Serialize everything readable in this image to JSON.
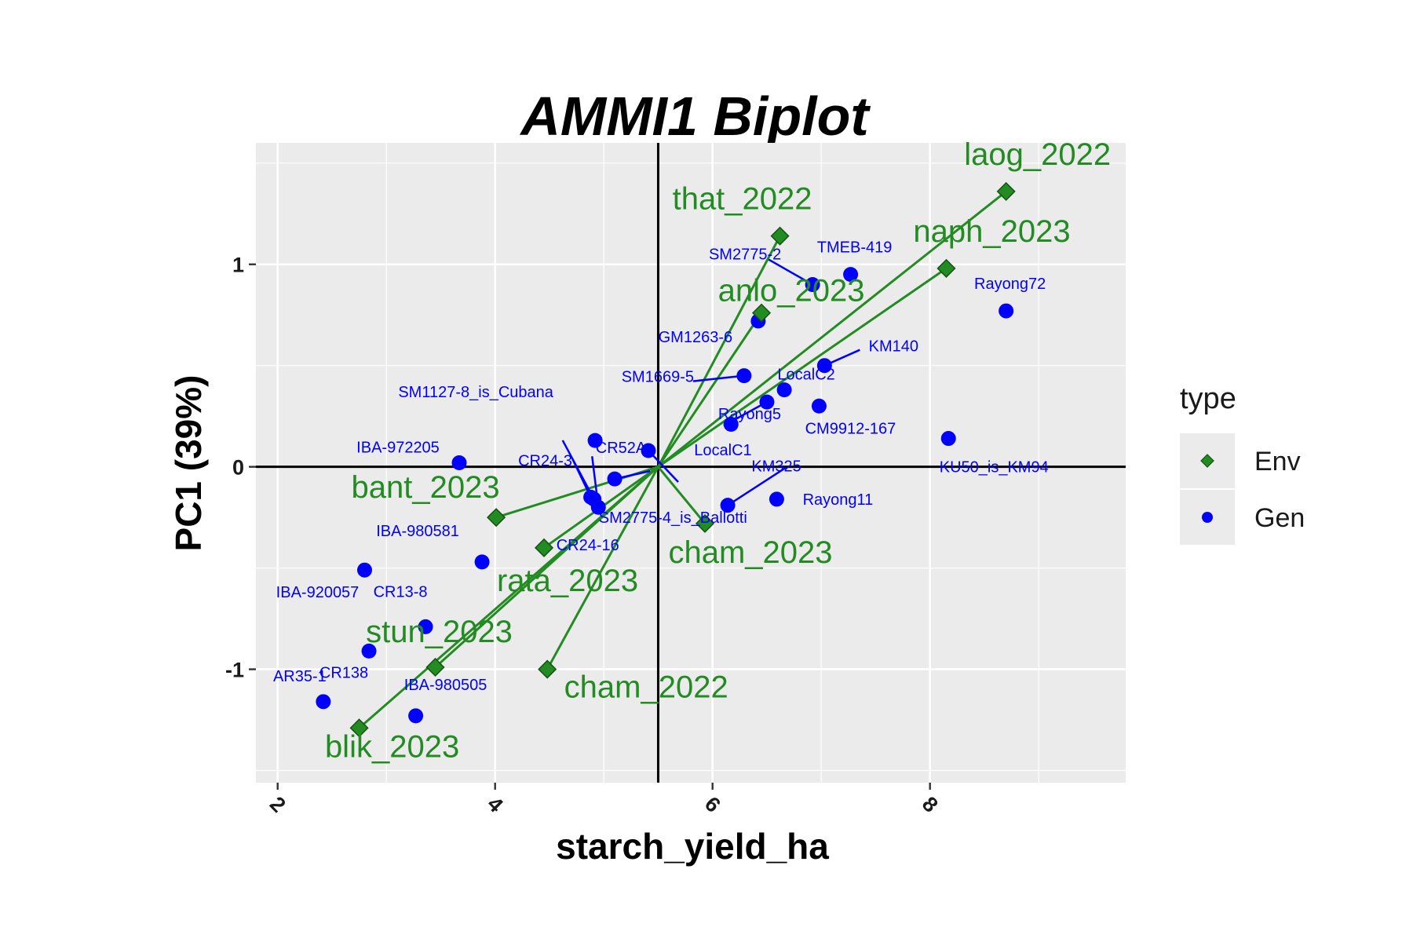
{
  "chart_data": {
    "type": "scatter",
    "title": "AMMI1 Biplot",
    "xlabel": "starch_yield_ha",
    "ylabel": "PC1 (39%)",
    "xlim": [
      1.8,
      9.8
    ],
    "ylim": [
      -1.56,
      1.6
    ],
    "x_ticks": [
      2,
      4,
      6,
      8
    ],
    "x_tick_labels": [
      "2",
      "4",
      "6",
      "8"
    ],
    "y_ticks": [
      -1,
      0,
      1
    ],
    "y_tick_labels": [
      "-1",
      "0",
      "1"
    ],
    "grid": true,
    "origin": [
      5.5,
      0
    ],
    "legend": {
      "title": "type",
      "position": "right",
      "entries": [
        {
          "label": "Env",
          "shape": "diamond",
          "color": "#228B22"
        },
        {
          "label": "Gen",
          "shape": "circle",
          "color": "#0000FF"
        }
      ]
    },
    "colors": {
      "env": "#228B22",
      "gen": "#0000FF",
      "panel": "#EBEBEB",
      "grid": "#FFFFFF"
    },
    "series": [
      {
        "name": "Env",
        "points": [
          {
            "label": "laog_2022",
            "x": 8.7,
            "y": 1.36
          },
          {
            "label": "naph_2023",
            "x": 8.15,
            "y": 0.98
          },
          {
            "label": "that_2022",
            "x": 6.62,
            "y": 1.14
          },
          {
            "label": "anlo_2023",
            "x": 6.45,
            "y": 0.76
          },
          {
            "label": "cham_2023",
            "x": 5.93,
            "y": -0.28
          },
          {
            "label": "bant_2023",
            "x": 4.01,
            "y": -0.25
          },
          {
            "label": "rata_2023",
            "x": 4.45,
            "y": -0.4
          },
          {
            "label": "stun_2023",
            "x": 3.45,
            "y": -0.99
          },
          {
            "label": "cham_2022",
            "x": 4.48,
            "y": -1.0
          },
          {
            "label": "blik_2023",
            "x": 2.75,
            "y": -1.29
          }
        ]
      },
      {
        "name": "Gen",
        "points": [
          {
            "label": "TMEB-419",
            "x": 7.27,
            "y": 0.95
          },
          {
            "label": "SM2775-2",
            "x": 6.92,
            "y": 0.9
          },
          {
            "label": "Rayong72",
            "x": 8.7,
            "y": 0.77
          },
          {
            "label": "GM1263-6",
            "x": 6.42,
            "y": 0.72
          },
          {
            "label": "KM140",
            "x": 7.03,
            "y": 0.5
          },
          {
            "label": "SM1669-5",
            "x": 6.29,
            "y": 0.45
          },
          {
            "label": "LocalC2",
            "x": 6.66,
            "y": 0.38
          },
          {
            "label": "Rayong5",
            "x": 6.5,
            "y": 0.32
          },
          {
            "label": "CM9912-167",
            "x": 6.98,
            "y": 0.3
          },
          {
            "label": "",
            "x": 6.17,
            "y": 0.21
          },
          {
            "label": "KU50_is_KM94",
            "x": 8.17,
            "y": 0.14
          },
          {
            "label": "SM1127-8_is_Cubana",
            "x": 4.92,
            "y": 0.13
          },
          {
            "label": "LocalC1",
            "x": 5.41,
            "y": 0.08
          },
          {
            "label": "IBA-972205",
            "x": 3.67,
            "y": 0.02
          },
          {
            "label": "CR52A",
            "x": 5.1,
            "y": -0.06
          },
          {
            "label": "KM325",
            "x": 6.14,
            "y": -0.19
          },
          {
            "label": "Rayong11",
            "x": 6.59,
            "y": -0.16
          },
          {
            "label": "CR24-3",
            "x": 4.88,
            "y": -0.15
          },
          {
            "label": "SM2775-4_is_Ballotti",
            "x": 4.95,
            "y": -0.2
          },
          {
            "label": "CR24-16",
            "x": 4.91,
            "y": -0.16
          },
          {
            "label": "IBA-980581",
            "x": 3.88,
            "y": -0.47
          },
          {
            "label": "IBA-920057",
            "x": 2.8,
            "y": -0.51
          },
          {
            "label": "CR13-8",
            "x": 3.36,
            "y": -0.79
          },
          {
            "label": "CR138",
            "x": 2.84,
            "y": -0.91
          },
          {
            "label": "AR35-1",
            "x": 2.42,
            "y": -1.16
          },
          {
            "label": "IBA-980505",
            "x": 3.27,
            "y": -1.23
          }
        ]
      }
    ]
  }
}
